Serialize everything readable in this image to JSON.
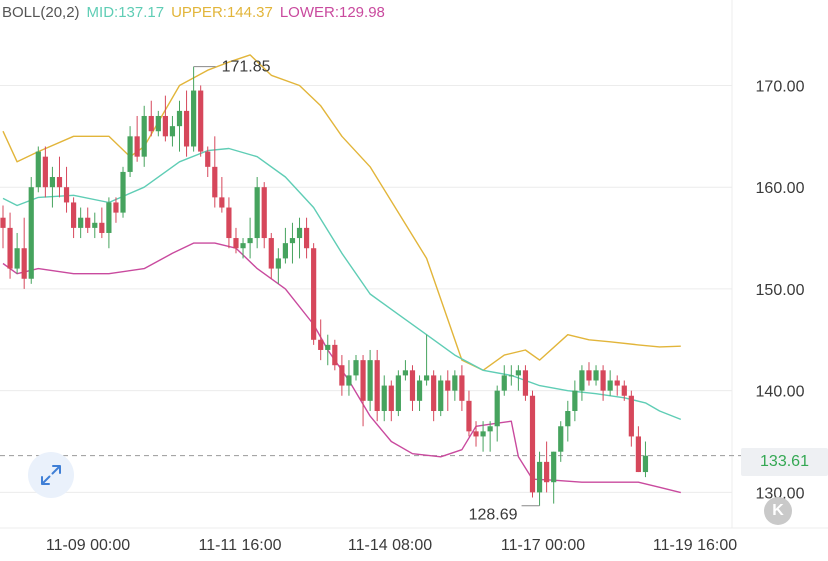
{
  "legend": {
    "indicator": "BOLL(20,2)",
    "mid_label": "MID:137.17",
    "upper_label": "UPPER:144.37",
    "lower_label": "LOWER:129.98"
  },
  "colors": {
    "up": "#46a35e",
    "down": "#d6475b",
    "mid": "#5fcdb5",
    "upper": "#e2b53a",
    "lower": "#c94a9e",
    "grid": "#ececec",
    "text": "#3a3a3a",
    "legend_label": "#555555",
    "current_price": "#34a853"
  },
  "current_price": {
    "value": 133.61,
    "label": "133.61"
  },
  "high_label": "171.85",
  "low_label": "128.69",
  "expand_icon": "expand-arrows-icon",
  "k_icon_label": "K",
  "chart_data": {
    "type": "candlestick",
    "x_ticks": [
      "11-09 00:00",
      "11-11 16:00",
      "11-14 08:00",
      "11-17 00:00",
      "11-19 16:00"
    ],
    "y_ticks": [
      130,
      140,
      150,
      160,
      170
    ],
    "y_tick_labels": [
      "130.00",
      "140.00",
      "150.00",
      "160.00",
      "170.00"
    ],
    "ylim": [
      126.5,
      178.4
    ],
    "high": 171.85,
    "low": 128.69,
    "candles": [
      [
        157,
        158.2,
        154.0,
        156.0
      ],
      [
        156,
        157.5,
        151.0,
        152.0
      ],
      [
        152,
        155.5,
        151.5,
        154.0
      ],
      [
        154,
        157.0,
        150.0,
        151.0
      ],
      [
        151,
        161.0,
        150.5,
        160.0
      ],
      [
        160,
        164.0,
        159.5,
        163.5
      ],
      [
        163,
        164.0,
        159.0,
        160.0
      ],
      [
        160,
        162.0,
        158.0,
        161.0
      ],
      [
        161,
        163.0,
        159.0,
        160.0
      ],
      [
        160,
        162.0,
        157.5,
        158.5
      ],
      [
        158.5,
        159.0,
        155.0,
        156.0
      ],
      [
        156,
        158.0,
        155.0,
        157.0
      ],
      [
        157,
        158.0,
        155.5,
        156.0
      ],
      [
        156,
        157.5,
        155.0,
        156.5
      ],
      [
        156.5,
        158.0,
        155.0,
        155.5
      ],
      [
        155.5,
        159.0,
        154.0,
        158.5
      ],
      [
        158.5,
        159.0,
        156.5,
        157.5
      ],
      [
        157.5,
        162.0,
        157.0,
        161.5
      ],
      [
        161.5,
        166.0,
        161.0,
        165.0
      ],
      [
        165,
        167.0,
        162.5,
        163.0
      ],
      [
        163,
        168.0,
        162.0,
        167.0
      ],
      [
        167,
        168.5,
        165.0,
        165.5
      ],
      [
        165.5,
        167.5,
        165.0,
        167.0
      ],
      [
        167,
        169.0,
        164.5,
        165.0
      ],
      [
        165,
        167.0,
        164.0,
        166.0
      ],
      [
        166,
        168.5,
        163.5,
        167.5
      ],
      [
        167.5,
        169.5,
        163.0,
        164.0
      ],
      [
        164,
        171.85,
        163.5,
        169.5
      ],
      [
        169.5,
        170.0,
        163.0,
        163.5
      ],
      [
        163.5,
        164.0,
        161.0,
        162.0
      ],
      [
        162,
        165.0,
        158.0,
        159.0
      ],
      [
        159,
        161.0,
        157.5,
        158.0
      ],
      [
        158,
        159.0,
        154.0,
        155.0
      ],
      [
        155,
        156.0,
        153.5,
        154.0
      ],
      [
        154,
        155.0,
        153.0,
        154.5
      ],
      [
        154.5,
        157.0,
        153.0,
        155.0
      ],
      [
        155,
        161.0,
        154.0,
        160.0
      ],
      [
        160,
        160.5,
        154.0,
        155.0
      ],
      [
        155,
        155.5,
        151.0,
        152.0
      ],
      [
        152,
        154.0,
        150.5,
        153.0
      ],
      [
        153,
        156.0,
        152.5,
        154.5
      ],
      [
        154.5,
        156.5,
        152.5,
        155.0
      ],
      [
        155,
        157.0,
        153.0,
        156.0
      ],
      [
        156,
        157.0,
        153.0,
        154.0
      ],
      [
        154,
        154.5,
        144.5,
        145.0
      ],
      [
        145,
        147.0,
        143.0,
        144.0
      ],
      [
        144,
        145.5,
        142.5,
        144.5
      ],
      [
        144.5,
        145.0,
        142.0,
        142.5
      ],
      [
        142.5,
        143.5,
        139.5,
        140.5
      ],
      [
        140.5,
        143.0,
        139.5,
        141.5
      ],
      [
        141.5,
        143.5,
        141.0,
        143.0
      ],
      [
        143,
        143.5,
        136.5,
        139.0
      ],
      [
        139,
        144.0,
        138.0,
        143.0
      ],
      [
        143,
        144.0,
        137.0,
        138.0
      ],
      [
        138,
        141.5,
        137.0,
        140.5
      ],
      [
        140.5,
        141.0,
        137.0,
        138.0
      ],
      [
        138,
        142.0,
        137.5,
        141.5
      ],
      [
        141.5,
        143.0,
        141.0,
        142.0
      ],
      [
        142,
        142.5,
        138.0,
        139.0
      ],
      [
        139,
        141.5,
        138.0,
        141.0
      ],
      [
        141,
        145.5,
        140.5,
        141.5
      ],
      [
        141.5,
        142.0,
        137.0,
        138.0
      ],
      [
        138,
        141.5,
        137.5,
        141.0
      ],
      [
        141,
        142.0,
        138.0,
        140.0
      ],
      [
        140,
        142.0,
        139.0,
        141.5
      ],
      [
        141.5,
        142.5,
        138.0,
        139.0
      ],
      [
        139,
        140.0,
        135.5,
        136.0
      ],
      [
        136,
        137.0,
        134.5,
        135.5
      ],
      [
        135.5,
        137.0,
        134.0,
        136.0
      ],
      [
        136,
        137.0,
        134.0,
        136.5
      ],
      [
        136.5,
        140.5,
        135.0,
        140.0
      ],
      [
        140,
        142.5,
        139.5,
        141.5
      ],
      [
        141.5,
        142.5,
        140.5,
        141.5
      ],
      [
        141.5,
        142.5,
        140.0,
        142.0
      ],
      [
        142,
        142.5,
        139.0,
        139.5
      ],
      [
        139.5,
        140.0,
        129.5,
        130.0
      ],
      [
        130,
        134.0,
        128.69,
        133.0
      ],
      [
        133,
        135.0,
        130.0,
        131.0
      ],
      [
        131,
        134.0,
        128.9,
        134.0
      ],
      [
        134,
        137.0,
        133.0,
        136.5
      ],
      [
        136.5,
        139.0,
        135.0,
        138.0
      ],
      [
        138,
        141.0,
        137.0,
        140.0
      ],
      [
        140,
        142.5,
        139.0,
        142.0
      ],
      [
        142,
        142.8,
        140.5,
        141.0
      ],
      [
        141,
        142.5,
        140.5,
        142.0
      ],
      [
        142,
        142.5,
        139.0,
        140.0
      ],
      [
        140,
        142.0,
        139.5,
        141.0
      ],
      [
        141,
        141.5,
        139.5,
        140.5
      ],
      [
        140.5,
        141.0,
        139.0,
        139.5
      ],
      [
        139.5,
        140.0,
        134.5,
        135.5
      ],
      [
        135.5,
        136.5,
        132.0,
        132.0
      ],
      [
        132,
        135.0,
        131.5,
        133.61
      ]
    ],
    "mid": [
      [
        0,
        158.9
      ],
      [
        2,
        158.2
      ],
      [
        5,
        159.0
      ],
      [
        10,
        159.2
      ],
      [
        15,
        158.5
      ],
      [
        20,
        160.0
      ],
      [
        25,
        162.5
      ],
      [
        29,
        163.6
      ],
      [
        32,
        163.8
      ],
      [
        36,
        163.0
      ],
      [
        40,
        161.0
      ],
      [
        44,
        158.0
      ],
      [
        48,
        153.5
      ],
      [
        52,
        149.5
      ],
      [
        56,
        147.5
      ],
      [
        60,
        145.5
      ],
      [
        64,
        143.5
      ],
      [
        68,
        142.0
      ],
      [
        72,
        141.5
      ],
      [
        76,
        140.5
      ],
      [
        80,
        140.0
      ],
      [
        84,
        139.7
      ],
      [
        88,
        139.3
      ],
      [
        91,
        138.8
      ],
      [
        93,
        138.0
      ],
      [
        96,
        137.17
      ]
    ],
    "upper": [
      [
        0,
        165.5
      ],
      [
        2,
        162.5
      ],
      [
        5,
        163.5
      ],
      [
        10,
        165.0
      ],
      [
        15,
        165.0
      ],
      [
        18,
        163.0
      ],
      [
        20,
        164.0
      ],
      [
        25,
        170.0
      ],
      [
        29,
        171.5
      ],
      [
        32,
        172.3
      ],
      [
        35,
        173.0
      ],
      [
        38,
        171.0
      ],
      [
        42,
        170.0
      ],
      [
        45,
        168.0
      ],
      [
        48,
        165.0
      ],
      [
        52,
        162.0
      ],
      [
        56,
        157.5
      ],
      [
        60,
        153.0
      ],
      [
        63,
        147.0
      ],
      [
        65,
        143.0
      ],
      [
        68,
        142.0
      ],
      [
        71,
        143.5
      ],
      [
        74,
        144.0
      ],
      [
        76,
        143.0
      ],
      [
        80,
        145.5
      ],
      [
        83,
        145.0
      ],
      [
        86,
        144.8
      ],
      [
        90,
        144.5
      ],
      [
        93,
        144.3
      ],
      [
        96,
        144.37
      ]
    ],
    "lower": [
      [
        0,
        152.5
      ],
      [
        2,
        151.5
      ],
      [
        5,
        152.0
      ],
      [
        10,
        151.5
      ],
      [
        15,
        151.5
      ],
      [
        20,
        152.0
      ],
      [
        24,
        153.5
      ],
      [
        27,
        154.5
      ],
      [
        30,
        154.5
      ],
      [
        33,
        154.0
      ],
      [
        36,
        152.0
      ],
      [
        40,
        150.0
      ],
      [
        44,
        146.5
      ],
      [
        46,
        144.0
      ],
      [
        49,
        141.0
      ],
      [
        52,
        137.5
      ],
      [
        55,
        135.0
      ],
      [
        58,
        133.8
      ],
      [
        62,
        133.5
      ],
      [
        65,
        134.2
      ],
      [
        67,
        136.5
      ],
      [
        70,
        136.8
      ],
      [
        72,
        137.0
      ],
      [
        73,
        133.5
      ],
      [
        75,
        131.3
      ],
      [
        78,
        131.2
      ],
      [
        82,
        131.0
      ],
      [
        86,
        131.0
      ],
      [
        90,
        131.0
      ],
      [
        93,
        130.5
      ],
      [
        96,
        129.98
      ]
    ]
  }
}
